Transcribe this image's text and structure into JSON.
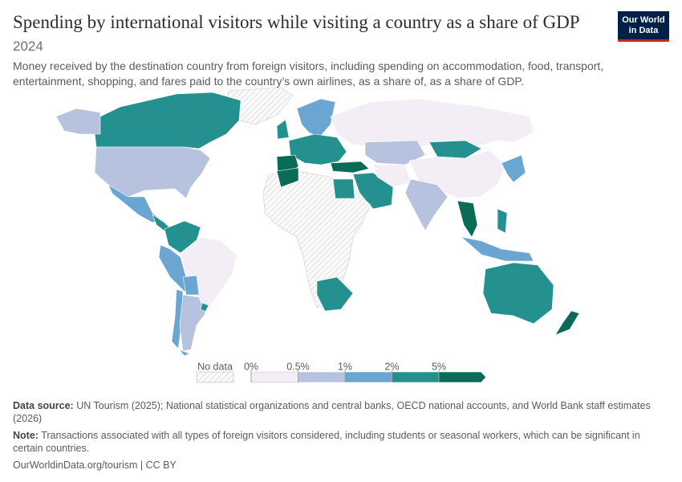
{
  "header": {
    "title": "Spending by international visitors while visiting a country as a share of GDP",
    "year": "2024",
    "subtitle": "Money received by the destination country from foreign visitors, including spending on accommodation, food, transport, entertainment, shopping, and fares paid to the country’s own airlines, as a share of, as a share of GDP.",
    "logo": [
      "Our World",
      "in Data"
    ]
  },
  "legend": {
    "no_data": "No data",
    "ticks": [
      {
        "value": 0,
        "label": "0%"
      },
      {
        "value": 0.5,
        "label": "0.5%"
      },
      {
        "value": 1,
        "label": "1%"
      },
      {
        "value": 2,
        "label": "2%"
      },
      {
        "value": 5,
        "label": "5%"
      }
    ],
    "colors": [
      "#f3eef6",
      "#b6c2de",
      "#6aa6d1",
      "#24908f",
      "#0a6b57"
    ]
  },
  "footer": {
    "source_label": "Data source:",
    "source": "UN Tourism (2025); National statistical organizations and central banks, OECD national accounts, and World Bank staff estimates (2026)",
    "note_label": "Note:",
    "note": "Transactions associated with all types of foreign visitors considered, including students or seasonal workers, which can be significant in certain countries.",
    "url": "OurWorldinData.org/tourism | CC BY"
  }
}
